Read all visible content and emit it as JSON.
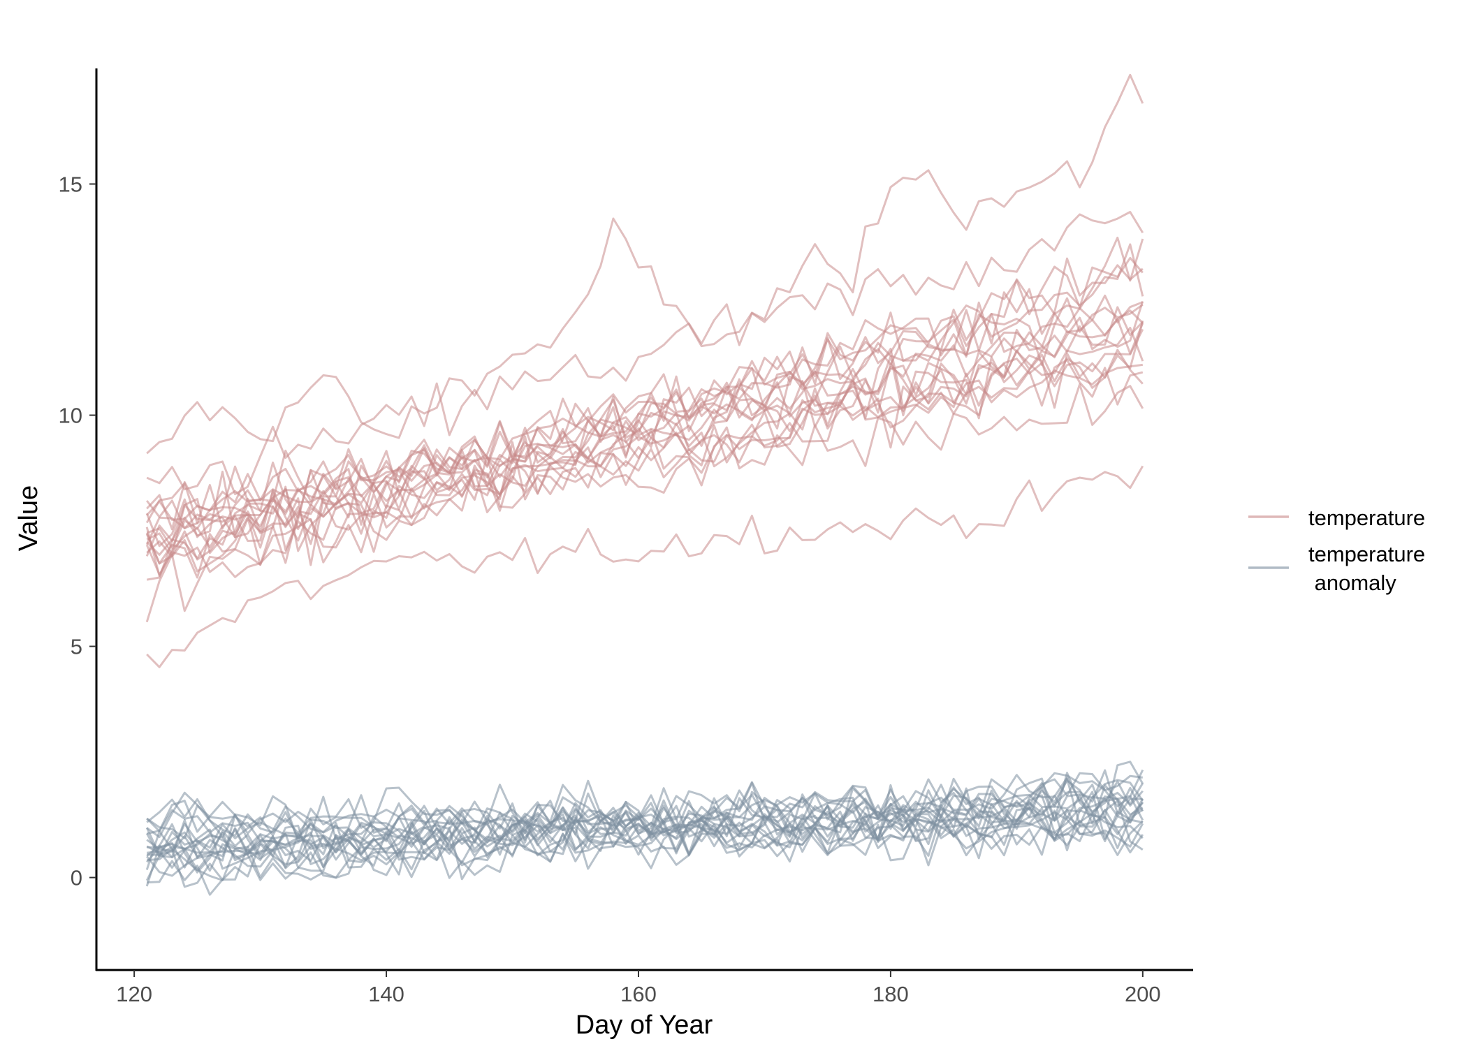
{
  "chart_data": {
    "type": "line",
    "title": "",
    "xlabel": "Day of Year",
    "ylabel": "Value",
    "xlim": [
      117,
      204
    ],
    "ylim": [
      -2,
      17.5
    ],
    "x_ticks": [
      120,
      140,
      160,
      180,
      200
    ],
    "y_ticks": [
      0,
      5,
      10,
      15
    ],
    "x": [
      121,
      122,
      123,
      124,
      125,
      126,
      127,
      128,
      129,
      130,
      131,
      132,
      133,
      134,
      135,
      136,
      137,
      138,
      139,
      140,
      141,
      142,
      143,
      144,
      145,
      146,
      147,
      148,
      149,
      150,
      151,
      152,
      153,
      154,
      155,
      156,
      157,
      158,
      159,
      160,
      161,
      162,
      163,
      164,
      165,
      166,
      167,
      168,
      169,
      170,
      171,
      172,
      173,
      174,
      175,
      176,
      177,
      178,
      179,
      180,
      181,
      182,
      183,
      184,
      185,
      186,
      187,
      188,
      189,
      190,
      191,
      192,
      193,
      194,
      195,
      196,
      197,
      198,
      199,
      200
    ],
    "grid": false,
    "legend": {
      "position": "right",
      "entries": [
        {
          "label_line1": "temperature",
          "label_line2": "",
          "color": "#c98a8a"
        },
        {
          "label_line1": "temperature",
          "label_line2": " anomaly",
          "color": "#7d8fa0"
        }
      ]
    },
    "series_groups": [
      {
        "name": "temperature",
        "color": "#c98a8a",
        "count": 20,
        "start_mean": 7.3,
        "end_mean": 12.0,
        "start_spread": 1.1,
        "end_spread": 1.6,
        "noise": 0.55,
        "highlighted_trace": {
          "anchors_x": [
            121,
            125,
            130,
            135,
            140,
            145,
            150,
            155,
            158,
            160,
            163,
            166,
            170,
            173,
            177,
            180,
            182,
            186,
            190,
            195,
            199,
            200
          ],
          "anchors_y": [
            8.9,
            10.2,
            9.6,
            10.8,
            9.4,
            10.6,
            11.2,
            12.0,
            13.9,
            13.2,
            12.2,
            11.6,
            12.1,
            13.3,
            12.9,
            15.1,
            15.5,
            14.4,
            14.8,
            15.2,
            17.2,
            16.8
          ]
        },
        "low_trace": {
          "anchors_x": [
            121,
            125,
            130,
            140,
            150,
            160,
            170,
            180,
            190,
            196,
            200
          ],
          "anchors_y": [
            4.7,
            5.3,
            6.0,
            6.7,
            6.9,
            7.1,
            7.5,
            7.6,
            7.9,
            8.6,
            8.7
          ]
        }
      },
      {
        "name": "temperature anomaly",
        "color": "#7d8fa0",
        "count": 20,
        "start_mean": 0.8,
        "end_mean": 1.3,
        "start_spread": 0.85,
        "end_spread": 0.85,
        "noise": 0.45,
        "ymin_clip": -1.1,
        "ymax_clip": 3.3
      }
    ]
  }
}
